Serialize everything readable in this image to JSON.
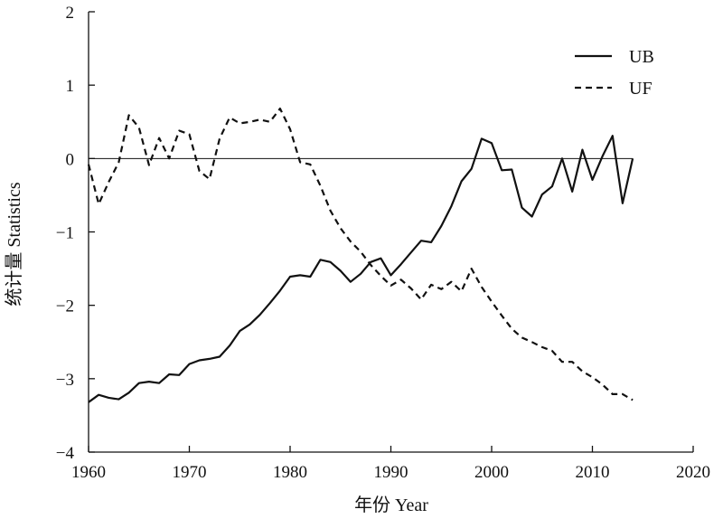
{
  "chart_data": {
    "type": "line",
    "title": "",
    "xlabel": "年份 Year",
    "ylabel": "统计量 Statistics",
    "xlim": [
      1960,
      2020
    ],
    "ylim": [
      -4,
      2
    ],
    "xticks": [
      1960,
      1970,
      1980,
      1990,
      2000,
      2010,
      2020
    ],
    "yticks": [
      2,
      1,
      0,
      -1,
      -2,
      -3,
      -4
    ],
    "ytick_labels": [
      "2",
      "1",
      "0",
      "−1",
      "−2",
      "−3",
      "−4"
    ],
    "grid": false,
    "legend_position": "top-right",
    "reference_line_y": 0,
    "x": [
      1960,
      1961,
      1962,
      1963,
      1964,
      1965,
      1966,
      1967,
      1968,
      1969,
      1970,
      1971,
      1972,
      1973,
      1974,
      1975,
      1976,
      1977,
      1978,
      1979,
      1980,
      1981,
      1982,
      1983,
      1984,
      1985,
      1986,
      1987,
      1988,
      1989,
      1990,
      1991,
      1992,
      1993,
      1994,
      1995,
      1996,
      1997,
      1998,
      1999,
      2000,
      2001,
      2002,
      2003,
      2004,
      2005,
      2006,
      2007,
      2008,
      2009,
      2010,
      2011,
      2012,
      2013,
      2014
    ],
    "series": [
      {
        "name": "UB",
        "style": "solid",
        "values": [
          -3.32,
          -3.22,
          -3.26,
          -3.28,
          -3.19,
          -3.06,
          -3.04,
          -3.06,
          -2.94,
          -2.95,
          -2.8,
          -2.75,
          -2.73,
          -2.7,
          -2.55,
          -2.35,
          -2.26,
          -2.13,
          -1.97,
          -1.8,
          -1.61,
          -1.59,
          -1.61,
          -1.38,
          -1.41,
          -1.53,
          -1.68,
          -1.57,
          -1.41,
          -1.36,
          -1.59,
          -1.44,
          -1.28,
          -1.12,
          -1.14,
          -0.92,
          -0.65,
          -0.31,
          -0.14,
          0.27,
          0.21,
          -0.16,
          -0.15,
          -0.67,
          -0.79,
          -0.49,
          -0.38,
          0.0,
          -0.45,
          0.12,
          -0.29,
          0.03,
          0.31,
          -0.61,
          0.0
        ]
      },
      {
        "name": "UF",
        "style": "dashed",
        "values": [
          -0.08,
          -0.62,
          -0.32,
          -0.05,
          0.59,
          0.42,
          -0.09,
          0.28,
          0.0,
          0.38,
          0.33,
          -0.17,
          -0.28,
          0.27,
          0.56,
          0.48,
          0.5,
          0.53,
          0.5,
          0.68,
          0.4,
          -0.05,
          -0.08,
          -0.37,
          -0.71,
          -0.95,
          -1.13,
          -1.27,
          -1.45,
          -1.6,
          -1.73,
          -1.65,
          -1.77,
          -1.92,
          -1.72,
          -1.78,
          -1.68,
          -1.81,
          -1.5,
          -1.75,
          -1.95,
          -2.14,
          -2.32,
          -2.44,
          -2.5,
          -2.57,
          -2.62,
          -2.77,
          -2.77,
          -2.9,
          -2.98,
          -3.08,
          -3.21,
          -3.21,
          -3.29
        ]
      }
    ]
  }
}
